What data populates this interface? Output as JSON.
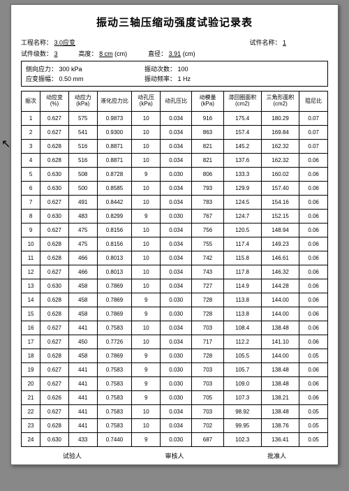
{
  "title": "振动三轴压缩动强度试验记录表",
  "meta": {
    "proj_label": "工程名称：",
    "proj_value": "3.0应变",
    "spec_label": "试件名称：",
    "spec_value": "1",
    "count_label": "试件级数：",
    "count_value": "3",
    "height_label": "高度：",
    "height_value": "8 cm",
    "height_unit": "(cm)",
    "diam_label": "直径：",
    "diam_value": "3.91",
    "diam_unit": "(cm)",
    "side_label": "侧向应力：",
    "side_value": "300 kPa",
    "cycles_label": "振动次数：",
    "cycles_value": "100",
    "amp_label": "应变振幅：",
    "amp_value": "0.50 mm",
    "freq_label": "振动频率：",
    "freq_value": "1 Hz"
  },
  "columns": [
    "振次",
    "动应变\n(%)",
    "动应力\n(kPa)",
    "液化应力比",
    "动孔压\n(kPa)",
    "动孔压比",
    "动模量\n(kPa)",
    "滞回圈面积\n(cm2)",
    "三角形面积\n(cm2)",
    "阻尼比"
  ],
  "rows": [
    [
      "1",
      "0.627",
      "575",
      "0.9873",
      "10",
      "0.034",
      "916",
      "175.4",
      "180.29",
      "0.07"
    ],
    [
      "2",
      "0.627",
      "541",
      "0.9300",
      "10",
      "0.034",
      "863",
      "157.4",
      "169.84",
      "0.07"
    ],
    [
      "3",
      "0.628",
      "516",
      "0.8871",
      "10",
      "0.034",
      "821",
      "145.2",
      "162.32",
      "0.07"
    ],
    [
      "4",
      "0.628",
      "516",
      "0.8871",
      "10",
      "0.034",
      "821",
      "137.6",
      "162.32",
      "0.06"
    ],
    [
      "5",
      "0.630",
      "508",
      "0.8728",
      "9",
      "0.030",
      "806",
      "133.3",
      "160.02",
      "0.06"
    ],
    [
      "6",
      "0.630",
      "500",
      "0.8585",
      "10",
      "0.034",
      "793",
      "129.9",
      "157.40",
      "0.06"
    ],
    [
      "7",
      "0.627",
      "491",
      "0.8442",
      "10",
      "0.034",
      "783",
      "124.5",
      "154.16",
      "0.06"
    ],
    [
      "8",
      "0.630",
      "483",
      "0.8299",
      "9",
      "0.030",
      "767",
      "124.7",
      "152.15",
      "0.06"
    ],
    [
      "9",
      "0.627",
      "475",
      "0.8156",
      "10",
      "0.034",
      "756",
      "120.5",
      "148.94",
      "0.06"
    ],
    [
      "10",
      "0.628",
      "475",
      "0.8156",
      "10",
      "0.034",
      "755",
      "117.4",
      "149.23",
      "0.06"
    ],
    [
      "11",
      "0.628",
      "466",
      "0.8013",
      "10",
      "0.034",
      "742",
      "115.8",
      "146.61",
      "0.06"
    ],
    [
      "12",
      "0.627",
      "466",
      "0.8013",
      "10",
      "0.034",
      "743",
      "117.8",
      "146.32",
      "0.06"
    ],
    [
      "13",
      "0.630",
      "458",
      "0.7869",
      "10",
      "0.034",
      "727",
      "114.9",
      "144.28",
      "0.06"
    ],
    [
      "14",
      "0.628",
      "458",
      "0.7869",
      "9",
      "0.030",
      "728",
      "113.8",
      "144.00",
      "0.06"
    ],
    [
      "15",
      "0.628",
      "458",
      "0.7869",
      "9",
      "0.030",
      "728",
      "113.8",
      "144.00",
      "0.06"
    ],
    [
      "16",
      "0.627",
      "441",
      "0.7583",
      "10",
      "0.034",
      "703",
      "108.4",
      "138.48",
      "0.06"
    ],
    [
      "17",
      "0.627",
      "450",
      "0.7726",
      "10",
      "0.034",
      "717",
      "112.2",
      "141.10",
      "0.06"
    ],
    [
      "18",
      "0.628",
      "458",
      "0.7869",
      "9",
      "0.030",
      "728",
      "105.5",
      "144.00",
      "0.05"
    ],
    [
      "19",
      "0.627",
      "441",
      "0.7583",
      "9",
      "0.030",
      "703",
      "105.7",
      "138.48",
      "0.06"
    ],
    [
      "20",
      "0.627",
      "441",
      "0.7583",
      "9",
      "0.030",
      "703",
      "109.0",
      "138.48",
      "0.06"
    ],
    [
      "21",
      "0.626",
      "441",
      "0.7583",
      "9",
      "0.030",
      "705",
      "107.3",
      "138.21",
      "0.06"
    ],
    [
      "22",
      "0.627",
      "441",
      "0.7583",
      "10",
      "0.034",
      "703",
      "98.92",
      "138.48",
      "0.05"
    ],
    [
      "23",
      "0.628",
      "441",
      "0.7583",
      "10",
      "0.034",
      "702",
      "99.95",
      "138.76",
      "0.05"
    ],
    [
      "24",
      "0.630",
      "433",
      "0.7440",
      "9",
      "0.030",
      "687",
      "102.3",
      "136.41",
      "0.05"
    ]
  ],
  "footer": {
    "tester": "试验人",
    "reviewer": "审核人",
    "approver": "批准人"
  },
  "col_widths": [
    "6%",
    "9%",
    "9%",
    "11%",
    "9%",
    "10%",
    "10%",
    "12%",
    "12%",
    "9%"
  ]
}
